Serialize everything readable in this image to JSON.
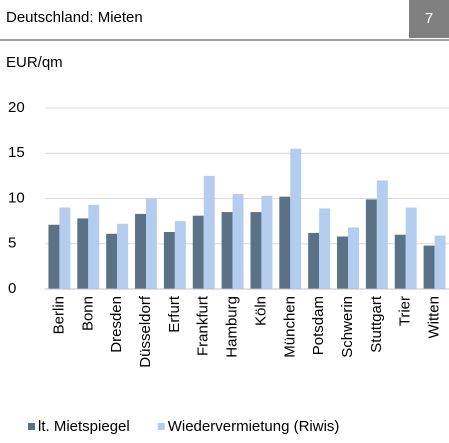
{
  "header": {
    "title": "Deutschland: Mieten",
    "page": "7"
  },
  "chart_data": {
    "type": "bar",
    "unit_label": "EUR/qm",
    "categories": [
      "Berlin",
      "Bonn",
      "Dresden",
      "Düsseldorf",
      "Erfurt",
      "Frankfurt",
      "Hamburg",
      "Köln",
      "München",
      "Potsdam",
      "Schwerin",
      "Stuttgart",
      "Trier",
      "Witten"
    ],
    "series": [
      {
        "name": "lt. Mietspiegel",
        "color": "#5b7185",
        "values": [
          7.1,
          7.8,
          6.1,
          8.3,
          6.3,
          8.1,
          8.5,
          8.5,
          10.2,
          6.2,
          5.8,
          9.9,
          6.0,
          4.8
        ]
      },
      {
        "name": "Wiedervermietung (Riwis)",
        "color": "#b4cdee",
        "values": [
          9.0,
          9.3,
          7.2,
          10.0,
          7.5,
          12.5,
          10.5,
          10.3,
          15.5,
          8.9,
          6.8,
          12.0,
          9.0,
          5.9
        ]
      }
    ],
    "ylim": [
      0,
      20
    ],
    "yticks": [
      0,
      5,
      10,
      15,
      20
    ],
    "grid": true,
    "legend": "bottom"
  }
}
